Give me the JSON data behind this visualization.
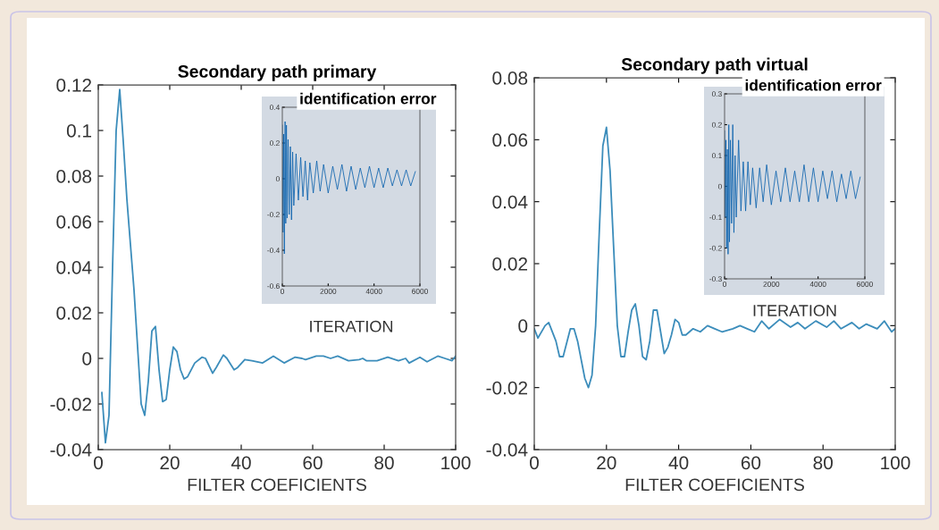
{
  "chart_data": [
    {
      "type": "line",
      "title": "Secondary path primary",
      "xlabel": "FILTER COEFICIENTS",
      "xlim": [
        0,
        100
      ],
      "xticks": [
        0,
        20,
        40,
        60,
        80,
        100
      ],
      "ylim": [
        -0.04,
        0.12
      ],
      "yticks": [
        -0.04,
        -0.02,
        0,
        0.02,
        0.04,
        0.06,
        0.08,
        0.1,
        0.12
      ],
      "grid": false,
      "series": [
        {
          "color": "#3c8dbb",
          "x": [
            1,
            2,
            3,
            4,
            5,
            6,
            7,
            8,
            9,
            10,
            11,
            12,
            13,
            14,
            15,
            16,
            17,
            18,
            19,
            20,
            21,
            22,
            23,
            24,
            25,
            27,
            29,
            30,
            32,
            33,
            35,
            36,
            38,
            39,
            41,
            43,
            46,
            49,
            51,
            52,
            55,
            57,
            58,
            61,
            63,
            65,
            67,
            70,
            73,
            74,
            75,
            78,
            81,
            84,
            86,
            87,
            90,
            92,
            95,
            97,
            99,
            100
          ],
          "values": [
            -0.015,
            -0.037,
            -0.025,
            0.04,
            0.1,
            0.118,
            0.095,
            0.07,
            0.05,
            0.03,
            0.005,
            -0.02,
            -0.025,
            -0.01,
            0.012,
            0.014,
            -0.005,
            -0.019,
            -0.018,
            -0.005,
            0.005,
            0.003,
            -0.005,
            -0.009,
            -0.008,
            -0.002,
            0.0005,
            0,
            -0.0065,
            -0.004,
            0.0015,
            0,
            -0.005,
            -0.004,
            -0.0005,
            -0.001,
            -0.002,
            0.001,
            -0.001,
            -0.002,
            0.0005,
            0,
            -0.0005,
            0.001,
            0.001,
            0,
            0.001,
            -0.001,
            -0.0005,
            0,
            -0.001,
            -0.001,
            0.0005,
            -0.001,
            0,
            -0.002,
            0.0005,
            -0.0015,
            0.001,
            0,
            -0.001,
            0.001
          ]
        }
      ]
    },
    {
      "type": "line",
      "title": "identification error",
      "xlabel": "ITERATION",
      "xlim": [
        0,
        6000
      ],
      "xticks": [
        0,
        2000,
        4000,
        6000
      ],
      "ylim": [
        -0.6,
        0.4
      ],
      "yticks": [
        -0.6,
        -0.4,
        -0.2,
        0,
        0.2,
        0.4
      ],
      "grid": false,
      "series": [
        {
          "color": "#0b62ad",
          "x": [
            0,
            30,
            60,
            90,
            120,
            150,
            180,
            210,
            250,
            300,
            350,
            400,
            450,
            500,
            600,
            700,
            800,
            900,
            1000,
            1100,
            1200,
            1350,
            1500,
            1650,
            1800,
            2000,
            2200,
            2400,
            2600,
            2800,
            3000,
            3200,
            3400,
            3600,
            3800,
            4000,
            4200,
            4400,
            4600,
            4800,
            5000,
            5200,
            5400,
            5600,
            5800
          ],
          "values": [
            0.3,
            -0.3,
            0.25,
            -0.42,
            0.32,
            -0.25,
            0.3,
            -0.22,
            0.22,
            -0.2,
            0.18,
            -0.23,
            0.15,
            -0.15,
            0.14,
            -0.12,
            0.12,
            -0.1,
            0.1,
            -0.12,
            0.09,
            -0.08,
            0.1,
            -0.07,
            0.08,
            -0.08,
            0.07,
            -0.06,
            0.08,
            -0.07,
            0.07,
            -0.06,
            0.06,
            -0.05,
            0.07,
            -0.05,
            0.06,
            -0.05,
            0.06,
            -0.04,
            0.05,
            -0.04,
            0.05,
            -0.04,
            0.04
          ]
        }
      ]
    },
    {
      "type": "line",
      "title": "Secondary path virtual",
      "xlabel": "FILTER COEFICIENTS",
      "xlim": [
        0,
        100
      ],
      "xticks": [
        0,
        20,
        40,
        60,
        80,
        100
      ],
      "ylim": [
        -0.04,
        0.08
      ],
      "yticks": [
        -0.04,
        -0.02,
        0,
        0.02,
        0.04,
        0.06,
        0.08
      ],
      "grid": false,
      "series": [
        {
          "color": "#3c8dbb",
          "x": [
            0,
            1,
            3,
            4,
            6,
            7,
            8,
            10,
            11,
            12,
            14,
            15,
            16,
            17,
            18,
            19,
            20,
            21,
            22,
            23,
            24,
            25,
            26,
            27,
            28,
            29,
            30,
            31,
            32,
            33,
            34,
            35,
            36,
            37,
            38,
            39,
            40,
            41,
            42,
            44,
            46,
            48,
            50,
            52,
            55,
            57,
            59,
            61,
            63,
            65,
            68,
            71,
            73,
            75,
            78,
            81,
            83,
            85,
            88,
            90,
            92,
            95,
            97,
            99,
            100
          ],
          "values": [
            -0.001,
            -0.004,
            0,
            0.001,
            -0.005,
            -0.01,
            -0.01,
            -0.001,
            -0.001,
            -0.005,
            -0.017,
            -0.02,
            -0.016,
            0,
            0.03,
            0.058,
            0.064,
            0.05,
            0.025,
            0,
            -0.01,
            -0.01,
            -0.002,
            0.005,
            0.007,
            0,
            -0.01,
            -0.011,
            -0.005,
            0.005,
            0.005,
            -0.002,
            -0.009,
            -0.007,
            -0.003,
            0.002,
            0.001,
            -0.003,
            -0.003,
            -0.001,
            -0.002,
            0,
            -0.001,
            -0.002,
            -0.001,
            0,
            -0.001,
            -0.002,
            0.0015,
            -0.001,
            0.002,
            -0.0005,
            0.001,
            -0.001,
            0.0015,
            -0.0005,
            0.0015,
            -0.001,
            0.001,
            -0.001,
            0.0005,
            -0.001,
            0.0015,
            -0.002,
            -0.001
          ]
        }
      ]
    },
    {
      "type": "line",
      "title": "identification error",
      "xlabel": "ITERATION",
      "xlim": [
        0,
        6000
      ],
      "xticks": [
        0,
        2000,
        4000,
        6000
      ],
      "ylim": [
        -0.3,
        0.3
      ],
      "yticks": [
        -0.3,
        -0.2,
        -0.1,
        0,
        0.1,
        0.2,
        0.3
      ],
      "grid": false,
      "series": [
        {
          "color": "#0b62ad",
          "x": [
            0,
            30,
            60,
            90,
            120,
            150,
            180,
            210,
            250,
            300,
            350,
            400,
            450,
            500,
            600,
            700,
            800,
            900,
            1000,
            1100,
            1200,
            1350,
            1500,
            1650,
            1800,
            2000,
            2200,
            2400,
            2600,
            2800,
            3000,
            3200,
            3400,
            3600,
            3800,
            4000,
            4200,
            4400,
            4600,
            4800,
            5000,
            5200,
            5400,
            5600,
            5800
          ],
          "values": [
            0.18,
            -0.1,
            0.15,
            -0.2,
            0.12,
            -0.22,
            0.2,
            -0.18,
            0.15,
            -0.12,
            0.2,
            -0.15,
            0.1,
            -0.1,
            0.15,
            -0.08,
            0.08,
            -0.08,
            0.08,
            -0.06,
            0.06,
            -0.07,
            0.06,
            -0.05,
            0.07,
            -0.06,
            0.05,
            -0.05,
            0.06,
            -0.05,
            0.05,
            -0.05,
            0.07,
            -0.05,
            0.06,
            -0.05,
            0.05,
            -0.04,
            0.05,
            -0.05,
            0.04,
            -0.04,
            0.05,
            -0.04,
            0.03
          ]
        }
      ]
    }
  ]
}
